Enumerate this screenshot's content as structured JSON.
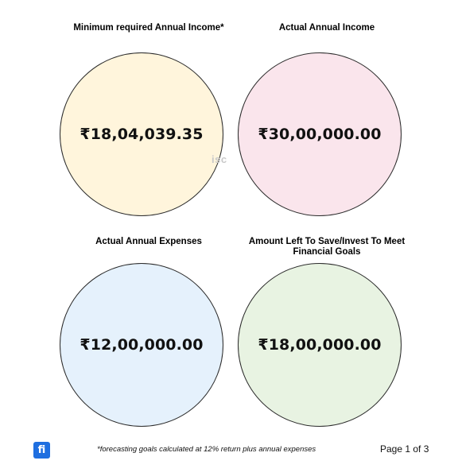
{
  "colors": {
    "circle_fill_min_income": "#fff5dc",
    "circle_fill_actual_income": "#fae5ec",
    "circle_fill_expenses": "#e5f1fc",
    "circle_fill_left_to_save": "#e8f3e2",
    "logo_bg": "#1f6fe0",
    "watermark": "#c9c9c9"
  },
  "cards": [
    {
      "title": "Minimum required Annual Income*",
      "amount": "₹18,04,039.35"
    },
    {
      "title": "Actual Annual Income",
      "amount": "₹30,00,000.00"
    },
    {
      "title": "Actual Annual Expenses",
      "amount": "₹12,00,000.00"
    },
    {
      "title": "Amount Left To Save/Invest To Meet Financial Goals",
      "amount": "₹18,00,000.00"
    }
  ],
  "watermark": "isc",
  "footer": {
    "logo_text": "fi",
    "logo_icon": "fi-logo-icon",
    "footnote": "*forecasting goals calculated at 12% return plus annual expenses",
    "page_label": "Page 1 of 3"
  }
}
